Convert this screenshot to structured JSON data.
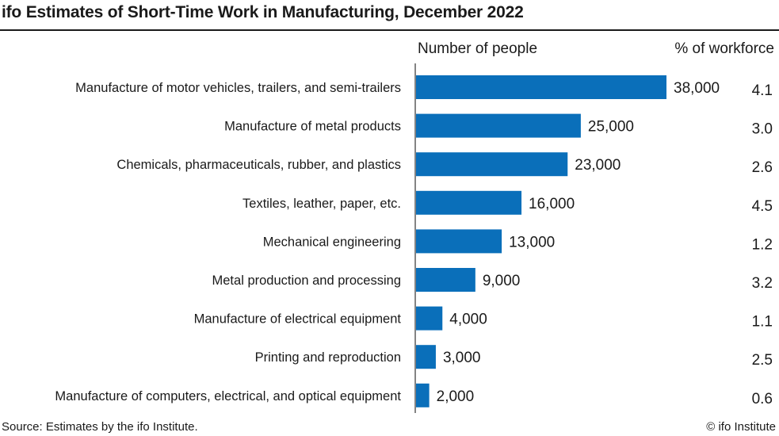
{
  "title": "ifo Estimates of Short-Time Work in Manufacturing, December 2022",
  "headers": {
    "number": "Number of people",
    "percent": "% of workforce"
  },
  "footer": {
    "source": "Source: Estimates by the ifo Institute.",
    "credit": "© ifo Institute"
  },
  "colors": {
    "bar": "#0a6fba",
    "axis": "#333333",
    "text": "#1a1a1a"
  },
  "chart_data": {
    "type": "bar",
    "orientation": "horizontal",
    "grid": false,
    "categories": [
      "Manufacture of motor vehicles, trailers, and semi-trailers",
      "Manufacture of metal products",
      "Chemicals, pharmaceuticals, rubber, and plastics",
      "Textiles, leather, paper, etc.",
      "Mechanical engineering",
      "Metal production and processing",
      "Manufacture of electrical equipment",
      "Printing and reproduction",
      "Manufacture of computers, electrical, and optical equipment"
    ],
    "values": [
      38000,
      25000,
      23000,
      16000,
      13000,
      9000,
      4000,
      3000,
      2000
    ],
    "value_labels": [
      "38,000",
      "25,000",
      "23,000",
      "16,000",
      "13,000",
      "9,000",
      "4,000",
      "3,000",
      "2,000"
    ],
    "percent_of_workforce": [
      "4.1",
      "3.0",
      "2.6",
      "4.5",
      "1.2",
      "3.2",
      "1.1",
      "2.5",
      "0.6"
    ],
    "xlim": [
      0,
      38000
    ]
  }
}
